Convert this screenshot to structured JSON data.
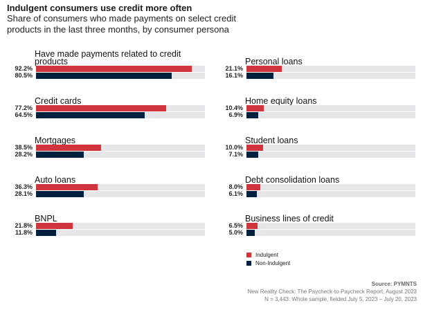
{
  "chart_data": {
    "type": "bar",
    "title": "Indulgent consumers use credit more often",
    "subtitle": "Share of consumers who made payments on select credit products in the last three months, by consumer persona",
    "xlim": [
      0,
      100
    ],
    "colors": {
      "Indulgent": "#d0343c",
      "Non-Indulgent": "#00203d",
      "track": "#e6e6e8"
    },
    "legend": [
      {
        "name": "Indulgent",
        "color": "#d0343c"
      },
      {
        "name": "Non-Indulgent",
        "color": "#00203d"
      }
    ],
    "categories": [
      {
        "label": "Have made payments related to credit products",
        "indulgent": 92.2,
        "non_indulgent": 80.5,
        "ind_label": "92.2%",
        "non_label": "80.5%"
      },
      {
        "label": "Credit cards",
        "indulgent": 77.2,
        "non_indulgent": 64.5,
        "ind_label": "77.2%",
        "non_label": "64.5%"
      },
      {
        "label": "Mortgages",
        "indulgent": 38.5,
        "non_indulgent": 28.2,
        "ind_label": "38.5%",
        "non_label": "28.2%"
      },
      {
        "label": "Auto loans",
        "indulgent": 36.3,
        "non_indulgent": 28.1,
        "ind_label": "36.3%",
        "non_label": "28.1%"
      },
      {
        "label": "BNPL",
        "indulgent": 21.8,
        "non_indulgent": 11.8,
        "ind_label": "21.8%",
        "non_label": "11.8%"
      },
      {
        "label": "Personal loans",
        "indulgent": 21.1,
        "non_indulgent": 16.1,
        "ind_label": "21.1%",
        "non_label": "16.1%"
      },
      {
        "label": "Home equity loans",
        "indulgent": 10.4,
        "non_indulgent": 6.9,
        "ind_label": "10.4%",
        "non_label": "6.9%"
      },
      {
        "label": "Student loans",
        "indulgent": 10.0,
        "non_indulgent": 7.1,
        "ind_label": "10.0%",
        "non_label": "7.1%"
      },
      {
        "label": "Debt consolidation loans",
        "indulgent": 8.0,
        "non_indulgent": 6.1,
        "ind_label": "8.0%",
        "non_label": "6.1%"
      },
      {
        "label": "Business lines of credit",
        "indulgent": 6.5,
        "non_indulgent": 5.0,
        "ind_label": "6.5%",
        "non_label": "5.0%"
      }
    ]
  },
  "source": {
    "label": "Source: PYMNTS",
    "report": "New Reality Check: The Paycheck-to-Paycheck Report, August 2023",
    "sample": "N = 3,443: Whole sample, fielded July 5, 2023 – July 20, 2023"
  }
}
